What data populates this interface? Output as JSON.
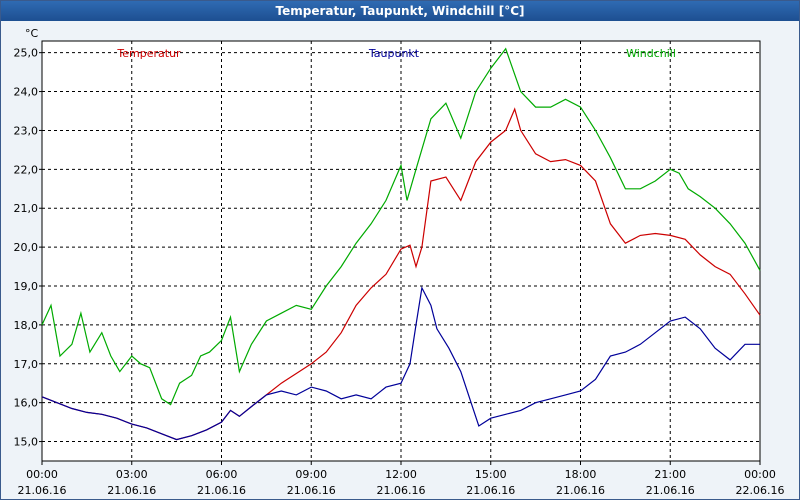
{
  "window": {
    "title": "Temperatur, Taupunkt, Windchill [°C]"
  },
  "chart_data": {
    "type": "line",
    "title": "Temperatur, Taupunkt, Windchill [°C]",
    "ylabel": "°C",
    "ylim": [
      14.5,
      25.3
    ],
    "yticks": [
      "15,0",
      "16,0",
      "17,0",
      "18,0",
      "19,0",
      "20,0",
      "21,0",
      "22,0",
      "23,0",
      "24,0",
      "25,0"
    ],
    "xlim": [
      0,
      24
    ],
    "xticks": [
      {
        "time": "00:00",
        "date": "21.06.16"
      },
      {
        "time": "03:00",
        "date": "21.06.16"
      },
      {
        "time": "06:00",
        "date": "21.06.16"
      },
      {
        "time": "09:00",
        "date": "21.06.16"
      },
      {
        "time": "12:00",
        "date": "21.06.16"
      },
      {
        "time": "15:00",
        "date": "21.06.16"
      },
      {
        "time": "18:00",
        "date": "21.06.16"
      },
      {
        "time": "21:00",
        "date": "21.06.16"
      },
      {
        "time": "00:00",
        "date": "22.06.16"
      }
    ],
    "grid": true,
    "legend_position": "top",
    "series": [
      {
        "name": "Temperatur",
        "color": "#cc0000",
        "points": [
          [
            0,
            16.15
          ],
          [
            0.5,
            16.0
          ],
          [
            1,
            15.85
          ],
          [
            1.5,
            15.75
          ],
          [
            2,
            15.7
          ],
          [
            2.5,
            15.6
          ],
          [
            3,
            15.45
          ],
          [
            3.5,
            15.35
          ],
          [
            4,
            15.2
          ],
          [
            4.5,
            15.05
          ],
          [
            5,
            15.15
          ],
          [
            5.5,
            15.3
          ],
          [
            6,
            15.5
          ],
          [
            6.3,
            15.8
          ],
          [
            6.6,
            15.65
          ],
          [
            7,
            15.9
          ],
          [
            7.5,
            16.2
          ],
          [
            8,
            16.5
          ],
          [
            8.5,
            16.75
          ],
          [
            9,
            17.0
          ],
          [
            9.5,
            17.3
          ],
          [
            10,
            17.8
          ],
          [
            10.5,
            18.5
          ],
          [
            11,
            18.95
          ],
          [
            11.5,
            19.3
          ],
          [
            12,
            19.95
          ],
          [
            12.3,
            20.05
          ],
          [
            12.5,
            19.5
          ],
          [
            12.7,
            20.0
          ],
          [
            13,
            21.7
          ],
          [
            13.5,
            21.8
          ],
          [
            14,
            21.2
          ],
          [
            14.5,
            22.2
          ],
          [
            15,
            22.7
          ],
          [
            15.5,
            23.0
          ],
          [
            15.8,
            23.55
          ],
          [
            16,
            23.0
          ],
          [
            16.5,
            22.4
          ],
          [
            17,
            22.2
          ],
          [
            17.5,
            22.25
          ],
          [
            18,
            22.1
          ],
          [
            18.5,
            21.7
          ],
          [
            19,
            20.6
          ],
          [
            19.5,
            20.1
          ],
          [
            20,
            20.3
          ],
          [
            20.5,
            20.35
          ],
          [
            21,
            20.3
          ],
          [
            21.5,
            20.2
          ],
          [
            22,
            19.8
          ],
          [
            22.5,
            19.5
          ],
          [
            23,
            19.3
          ],
          [
            23.5,
            18.8
          ],
          [
            24,
            18.25
          ]
        ]
      },
      {
        "name": "Taupunkt",
        "color": "#000099",
        "points": [
          [
            0,
            16.15
          ],
          [
            0.5,
            16.0
          ],
          [
            1,
            15.85
          ],
          [
            1.5,
            15.75
          ],
          [
            2,
            15.7
          ],
          [
            2.5,
            15.6
          ],
          [
            3,
            15.45
          ],
          [
            3.5,
            15.35
          ],
          [
            4,
            15.2
          ],
          [
            4.5,
            15.05
          ],
          [
            5,
            15.15
          ],
          [
            5.5,
            15.3
          ],
          [
            6,
            15.5
          ],
          [
            6.3,
            15.8
          ],
          [
            6.6,
            15.65
          ],
          [
            7,
            15.9
          ],
          [
            7.5,
            16.2
          ],
          [
            8,
            16.3
          ],
          [
            8.5,
            16.2
          ],
          [
            9,
            16.4
          ],
          [
            9.5,
            16.3
          ],
          [
            10,
            16.1
          ],
          [
            10.5,
            16.2
          ],
          [
            11,
            16.1
          ],
          [
            11.5,
            16.4
          ],
          [
            12,
            16.5
          ],
          [
            12.3,
            17.0
          ],
          [
            12.5,
            18.0
          ],
          [
            12.7,
            18.95
          ],
          [
            13,
            18.5
          ],
          [
            13.2,
            17.9
          ],
          [
            13.6,
            17.4
          ],
          [
            14,
            16.8
          ],
          [
            14.3,
            16.1
          ],
          [
            14.6,
            15.4
          ],
          [
            15,
            15.6
          ],
          [
            15.5,
            15.7
          ],
          [
            16,
            15.8
          ],
          [
            16.5,
            16.0
          ],
          [
            17,
            16.1
          ],
          [
            17.5,
            16.2
          ],
          [
            18,
            16.3
          ],
          [
            18.5,
            16.6
          ],
          [
            19,
            17.2
          ],
          [
            19.5,
            17.3
          ],
          [
            20,
            17.5
          ],
          [
            20.5,
            17.8
          ],
          [
            21,
            18.1
          ],
          [
            21.5,
            18.2
          ],
          [
            22,
            17.9
          ],
          [
            22.5,
            17.4
          ],
          [
            23,
            17.1
          ],
          [
            23.5,
            17.5
          ],
          [
            24,
            17.5
          ]
        ]
      },
      {
        "name": "Windchill",
        "color": "#00aa00",
        "points": [
          [
            0,
            18.0
          ],
          [
            0.3,
            18.5
          ],
          [
            0.6,
            17.2
          ],
          [
            1,
            17.5
          ],
          [
            1.3,
            18.3
          ],
          [
            1.6,
            17.3
          ],
          [
            2,
            17.8
          ],
          [
            2.3,
            17.2
          ],
          [
            2.6,
            16.8
          ],
          [
            3,
            17.2
          ],
          [
            3.3,
            17.0
          ],
          [
            3.6,
            16.9
          ],
          [
            4,
            16.1
          ],
          [
            4.3,
            15.95
          ],
          [
            4.6,
            16.5
          ],
          [
            5,
            16.7
          ],
          [
            5.3,
            17.2
          ],
          [
            5.6,
            17.3
          ],
          [
            6,
            17.6
          ],
          [
            6.3,
            18.2
          ],
          [
            6.6,
            16.8
          ],
          [
            7,
            17.5
          ],
          [
            7.5,
            18.1
          ],
          [
            8,
            18.3
          ],
          [
            8.5,
            18.5
          ],
          [
            9,
            18.4
          ],
          [
            9.5,
            19.0
          ],
          [
            10,
            19.5
          ],
          [
            10.5,
            20.1
          ],
          [
            11,
            20.6
          ],
          [
            11.5,
            21.2
          ],
          [
            12,
            22.1
          ],
          [
            12.2,
            21.2
          ],
          [
            12.5,
            22.0
          ],
          [
            13,
            23.3
          ],
          [
            13.5,
            23.7
          ],
          [
            14,
            22.8
          ],
          [
            14.5,
            24.0
          ],
          [
            15,
            24.6
          ],
          [
            15.5,
            25.1
          ],
          [
            16,
            24.0
          ],
          [
            16.5,
            23.6
          ],
          [
            17,
            23.6
          ],
          [
            17.5,
            23.8
          ],
          [
            18,
            23.6
          ],
          [
            18.5,
            23.0
          ],
          [
            19,
            22.3
          ],
          [
            19.5,
            21.5
          ],
          [
            20,
            21.5
          ],
          [
            20.5,
            21.7
          ],
          [
            21,
            22.0
          ],
          [
            21.3,
            21.9
          ],
          [
            21.6,
            21.5
          ],
          [
            22,
            21.3
          ],
          [
            22.5,
            21.0
          ],
          [
            23,
            20.6
          ],
          [
            23.5,
            20.1
          ],
          [
            24,
            19.4
          ]
        ]
      }
    ]
  }
}
